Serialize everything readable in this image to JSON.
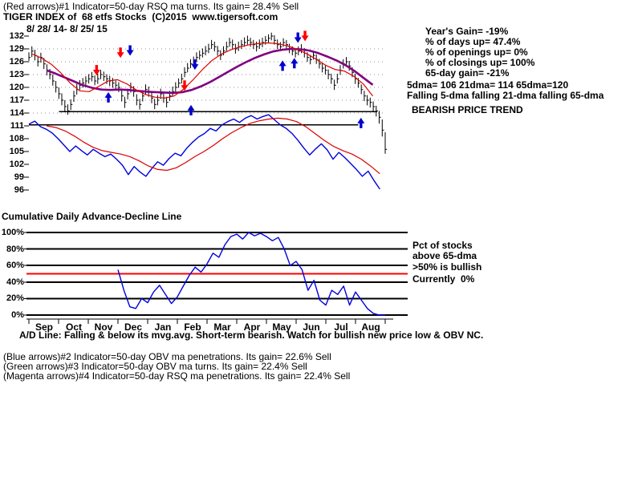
{
  "header": {
    "indicator_line": "(Red arrows)#1 Indicator=50-day RSQ ma turns. Its gain= 28.4% Sell",
    "title": "TIGER INDEX of  68 etfs Stocks  (C)2015  www.tigersoft.com",
    "date_range": "8/ 28/ 14- 8/ 25/ 15"
  },
  "stats_panel": {
    "lines": [
      "Year's Gain= -19%",
      "% of days up= 47.4%",
      "% of openings up= 0%",
      "% of closings up= 100%",
      "65-day gain= -21%"
    ],
    "dma_values": "5dma= 106 21dma= 114 65dma=120",
    "dma_trend": "Falling 5-dma falling 21-dma falling 65-dma",
    "price_trend": "BEARISH PRICE TREND"
  },
  "ad_section": {
    "title": "Cumulative Daily Advance-Decline Line",
    "comment": "A/D Line: Falling & below its mvg.avg. Short-term bearish. Watch for bullish new price low & OBV NC."
  },
  "pct_panel": {
    "line1": "Pct of stocks",
    "line2": "above 65-dma",
    "line3": ">50% is bullish",
    "line4": "Currently  0%"
  },
  "footer_legends": [
    "(Blue arrows)#2 Indicator=50-day OBV ma penetrations. Its gain= 22.6% Sell",
    "(Green arrows)#3 Indicator=50-day OBV ma turns. Its gain= 22.4% Sell",
    "(Magenta arrows)#4 Indicator=50-day RSQ ma penetrations. Its gain= 22.4% Sell"
  ],
  "colors": {
    "price_bar": "#000000",
    "ma65": "#800080",
    "ma21": "#dd0000",
    "ad_line": "#0000dd",
    "ad_ma": "#dd0000",
    "pct_line": "#0000dd",
    "threshold": "#ff0000",
    "arrow_red": "#ff0000",
    "arrow_blue": "#0000cc",
    "grid": "#909090"
  },
  "chart_data": [
    {
      "type": "ohlc",
      "title": "TIGER INDEX of 68 etfs Stocks",
      "date_range": "8/ 28/ 14- 8/ 25/ 15",
      "ylim": [
        96,
        132
      ],
      "yticks": [
        132,
        129,
        126,
        123,
        120,
        117,
        114,
        111,
        108,
        105,
        102,
        99,
        96
      ],
      "grid_prices": [
        129,
        126,
        123,
        120,
        117,
        114
      ],
      "months": [
        "Sep",
        "Oct",
        "Nov",
        "Dec",
        "Jan",
        "Feb",
        "Mar",
        "Apr",
        "May",
        "Jun",
        "Jul",
        "Aug"
      ],
      "bars_hlc": [
        [
          128.2,
          126.2,
          127
        ],
        [
          129.6,
          127.1,
          128.5
        ],
        [
          128.8,
          126.3,
          127.5
        ],
        [
          127.4,
          124.9,
          126
        ],
        [
          128.1,
          125.8,
          127
        ],
        [
          126.9,
          124.3,
          125.5
        ],
        [
          125.4,
          122.8,
          124
        ],
        [
          124.3,
          121.9,
          123
        ],
        [
          123.0,
          120.4,
          121.5
        ],
        [
          121.5,
          118.8,
          120
        ],
        [
          120.0,
          117.3,
          118.5
        ],
        [
          118.6,
          115.8,
          117
        ],
        [
          117.0,
          114.4,
          115.5
        ],
        [
          116.0,
          113.6,
          114.5
        ],
        [
          117.2,
          114.7,
          116
        ],
        [
          119.2,
          116.6,
          118
        ],
        [
          120.8,
          118.3,
          119.5
        ],
        [
          121.7,
          119.4,
          120.5
        ],
        [
          122.2,
          119.9,
          121
        ],
        [
          122.6,
          120.3,
          121.5
        ],
        [
          123.1,
          120.9,
          122
        ],
        [
          123.6,
          121.4,
          122.5
        ],
        [
          122.8,
          120.5,
          121.5
        ],
        [
          123.2,
          120.8,
          122
        ],
        [
          124.1,
          121.9,
          123
        ],
        [
          123.7,
          121.5,
          122.5
        ],
        [
          123.1,
          120.8,
          122
        ],
        [
          122.7,
          120.3,
          121.5
        ],
        [
          122.2,
          119.9,
          121
        ],
        [
          121.6,
          119.4,
          120.5
        ],
        [
          121.2,
          118.9,
          120
        ],
        [
          119.5,
          116.7,
          118
        ],
        [
          117.8,
          115.2,
          116.5
        ],
        [
          119.7,
          117.2,
          118.5
        ],
        [
          121.1,
          118.8,
          120
        ],
        [
          120.3,
          117.8,
          119
        ],
        [
          118.4,
          115.8,
          117
        ],
        [
          117.3,
          114.8,
          116
        ],
        [
          119.2,
          116.7,
          118
        ],
        [
          120.7,
          118.3,
          119.5
        ],
        [
          120.2,
          117.8,
          119
        ],
        [
          118.8,
          116.3,
          117.5
        ],
        [
          117.3,
          114.9,
          116
        ],
        [
          118.2,
          115.8,
          117
        ],
        [
          119.7,
          117.3,
          118.5
        ],
        [
          118.8,
          116.4,
          117.5
        ],
        [
          117.8,
          115.3,
          116.5
        ],
        [
          119.2,
          116.8,
          118
        ],
        [
          120.2,
          117.9,
          119
        ],
        [
          121.2,
          118.9,
          120
        ],
        [
          122.1,
          119.9,
          121
        ],
        [
          123.2,
          120.9,
          122
        ],
        [
          124.7,
          122.4,
          123.5
        ],
        [
          125.7,
          123.5,
          124.5
        ],
        [
          126.6,
          124.5,
          125.5
        ],
        [
          127.2,
          125.0,
          126
        ],
        [
          128.2,
          126.0,
          127
        ],
        [
          128.6,
          126.5,
          127.5
        ],
        [
          129.1,
          127.0,
          128
        ],
        [
          129.7,
          127.5,
          128.5
        ],
        [
          130.2,
          128.0,
          129
        ],
        [
          131.1,
          129.0,
          130
        ],
        [
          130.7,
          128.4,
          129.5
        ],
        [
          129.7,
          127.4,
          128.5
        ],
        [
          128.7,
          126.4,
          127.5
        ],
        [
          129.6,
          127.5,
          128.5
        ],
        [
          130.7,
          128.5,
          129.5
        ],
        [
          131.6,
          129.5,
          130.5
        ],
        [
          131.2,
          128.9,
          130
        ],
        [
          130.2,
          127.9,
          129
        ],
        [
          130.7,
          128.5,
          129.5
        ],
        [
          131.1,
          129.0,
          130
        ],
        [
          131.7,
          129.5,
          130.5
        ],
        [
          132.1,
          130.0,
          131
        ],
        [
          131.6,
          129.5,
          130.5
        ],
        [
          131.1,
          129.0,
          130
        ],
        [
          130.7,
          128.4,
          129.5
        ],
        [
          131.2,
          129.0,
          130
        ],
        [
          131.6,
          129.4,
          130.5
        ],
        [
          132.0,
          130.0,
          131
        ],
        [
          132.4,
          130.5,
          131.5
        ],
        [
          132.8,
          131.0,
          132
        ],
        [
          132.2,
          130.0,
          131
        ],
        [
          131.2,
          129.0,
          130
        ],
        [
          130.6,
          128.5,
          129.5
        ],
        [
          131.5,
          129.5,
          130.5
        ],
        [
          131.1,
          129.0,
          130
        ],
        [
          130.2,
          128.0,
          129
        ],
        [
          129.6,
          127.5,
          128.5
        ],
        [
          129.1,
          127.0,
          128
        ],
        [
          129.6,
          127.5,
          128.5
        ],
        [
          130.1,
          128.0,
          129
        ],
        [
          129.2,
          127.0,
          128
        ],
        [
          128.2,
          126.0,
          127
        ],
        [
          127.6,
          125.4,
          126.5
        ],
        [
          128.6,
          126.5,
          127.5
        ],
        [
          127.7,
          125.5,
          126.5
        ],
        [
          126.7,
          124.4,
          125.5
        ],
        [
          125.7,
          123.5,
          124.5
        ],
        [
          125.1,
          123.0,
          124
        ],
        [
          124.2,
          121.9,
          123
        ],
        [
          123.2,
          120.8,
          122
        ],
        [
          121.8,
          119.4,
          120.5
        ],
        [
          123.2,
          120.9,
          122
        ],
        [
          125.2,
          122.9,
          124
        ],
        [
          126.6,
          124.4,
          125.5
        ],
        [
          127.1,
          124.9,
          126
        ],
        [
          126.2,
          123.9,
          125
        ],
        [
          124.7,
          122.4,
          123.5
        ],
        [
          123.2,
          120.8,
          122
        ],
        [
          122.2,
          119.9,
          121
        ],
        [
          120.7,
          118.4,
          119.5
        ],
        [
          119.2,
          116.8,
          118
        ],
        [
          118.2,
          115.8,
          117
        ],
        [
          117.6,
          115.3,
          116.5
        ],
        [
          116.7,
          114.3,
          115.5
        ],
        [
          115.7,
          113.2,
          114.5
        ],
        [
          114.5,
          111.5,
          113
        ],
        [
          112.5,
          108.5,
          110
        ],
        [
          109.5,
          104.5,
          105.5
        ]
      ],
      "ma65": {
        "name": "65-day moving average",
        "x0": 0.05,
        "x1": 0.965,
        "values": [
          124,
          123.2,
          122.3,
          121.4,
          120.5,
          119.9,
          119.5,
          119.4,
          119.5,
          119.4,
          119.2,
          119,
          118.9,
          118.8,
          118.7,
          118.9,
          119.4,
          120.2,
          121.2,
          122.4,
          123.6,
          124.8,
          125.9,
          126.9,
          127.7,
          128.4,
          128.8,
          129,
          128.9,
          128.6,
          128,
          127.2,
          126.3,
          125.2,
          123.8,
          122.2,
          120.6
        ]
      },
      "ma21": {
        "name": "21-day moving average",
        "x0": 0.01,
        "x1": 0.965,
        "values": [
          127.8,
          126.8,
          125.4,
          123.4,
          121,
          119.2,
          119,
          120.2,
          121.5,
          121.8,
          120.8,
          119.4,
          118.3,
          117.7,
          117.5,
          118,
          119.6,
          121.8,
          124.2,
          126.3,
          127.8,
          128.8,
          129.5,
          130,
          130.3,
          130.4,
          130.2,
          129.7,
          128.9,
          127.9,
          126.6,
          125.2,
          124.2,
          123.8,
          122.6,
          120.8,
          118
        ]
      },
      "support_lines": [
        {
          "price": 114.3,
          "f0": 0.085,
          "f1": 0.977
        },
        {
          "price": 111.2,
          "f0": 0.0,
          "f1": 0.925
        }
      ],
      "arrows": [
        {
          "f": 0.19,
          "price": 122.8,
          "dir": "down",
          "color": "red"
        },
        {
          "f": 0.257,
          "price": 126.9,
          "dir": "down",
          "color": "red"
        },
        {
          "f": 0.437,
          "price": 119.2,
          "dir": "down",
          "color": "red"
        },
        {
          "f": 0.775,
          "price": 130.8,
          "dir": "down",
          "color": "red"
        },
        {
          "f": 0.223,
          "price": 118.9,
          "dir": "up",
          "color": "blue"
        },
        {
          "f": 0.284,
          "price": 127.4,
          "dir": "down",
          "color": "blue"
        },
        {
          "f": 0.455,
          "price": 115.9,
          "dir": "up",
          "color": "blue"
        },
        {
          "f": 0.466,
          "price": 124.1,
          "dir": "down",
          "color": "blue"
        },
        {
          "f": 0.712,
          "price": 126.3,
          "dir": "up",
          "color": "blue"
        },
        {
          "f": 0.745,
          "price": 126.9,
          "dir": "up",
          "color": "blue"
        },
        {
          "f": 0.755,
          "price": 130.4,
          "dir": "down",
          "color": "blue"
        },
        {
          "f": 0.932,
          "price": 112.9,
          "dir": "up",
          "color": "blue"
        }
      ]
    },
    {
      "type": "line",
      "title": "Cumulative Daily Advance-Decline Line",
      "note": "plotted on the price scale below the bars",
      "series": [
        {
          "name": "A/D line",
          "x0": 0.0,
          "x1": 0.985,
          "values": [
            111.4,
            112.1,
            110.8,
            110.2,
            109.3,
            108,
            106.5,
            105,
            106.3,
            105.2,
            104.2,
            105.5,
            104.6,
            103.8,
            104.4,
            103.2,
            101.8,
            99.6,
            101.5,
            100.2,
            99.2,
            101,
            102.6,
            101.8,
            103.4,
            104.6,
            104,
            105.8,
            107.2,
            108.4,
            109.2,
            110.4,
            109.8,
            111.2,
            112,
            112.6,
            111.8,
            112.8,
            113.4,
            112.6,
            113.2,
            113.6,
            112.4,
            111.2,
            110.4,
            109.2,
            107.6,
            105.8,
            104.2,
            105.6,
            106.8,
            105.4,
            103.2,
            104.8,
            103.6,
            102.2,
            100.8,
            99.2,
            100.4,
            98.2,
            96.2
          ]
        },
        {
          "name": "A/D mvg.avg",
          "x0": 0.05,
          "x1": 0.985,
          "values": [
            111,
            110.6,
            109.8,
            108.6,
            107.2,
            106,
            105.2,
            104.8,
            104.4,
            103.8,
            102.8,
            101.6,
            100.8,
            100.6,
            101.2,
            102.4,
            103.8,
            105,
            106.4,
            108,
            109.4,
            110.6,
            111.6,
            112.2,
            112.6,
            112.8,
            112.6,
            112,
            110.8,
            109.2,
            107.6,
            106.2,
            105.2,
            104.4,
            103.2,
            101.6,
            99.8
          ]
        }
      ]
    },
    {
      "type": "line",
      "title": "Pct of stocks above 65-dma",
      "ylim": [
        0,
        100
      ],
      "yticks_labels": [
        "100%",
        "80%",
        "60%",
        "40%",
        "20%",
        "0%"
      ],
      "threshold": {
        "value": 50,
        "label": ">50% is bullish"
      },
      "current_value": "0%",
      "series": [
        {
          "name": "Pct above 65-dma",
          "x0": 0.25,
          "x1": 1.0,
          "values": [
            55,
            30,
            10,
            8,
            20,
            15,
            28,
            36,
            25,
            14,
            22,
            35,
            48,
            58,
            52,
            62,
            75,
            70,
            85,
            95,
            98,
            92,
            100,
            96,
            99,
            95,
            90,
            94,
            80,
            60,
            65,
            55,
            30,
            42,
            18,
            12,
            30,
            25,
            35,
            12,
            28,
            18,
            8,
            2,
            0,
            0
          ]
        }
      ]
    }
  ]
}
